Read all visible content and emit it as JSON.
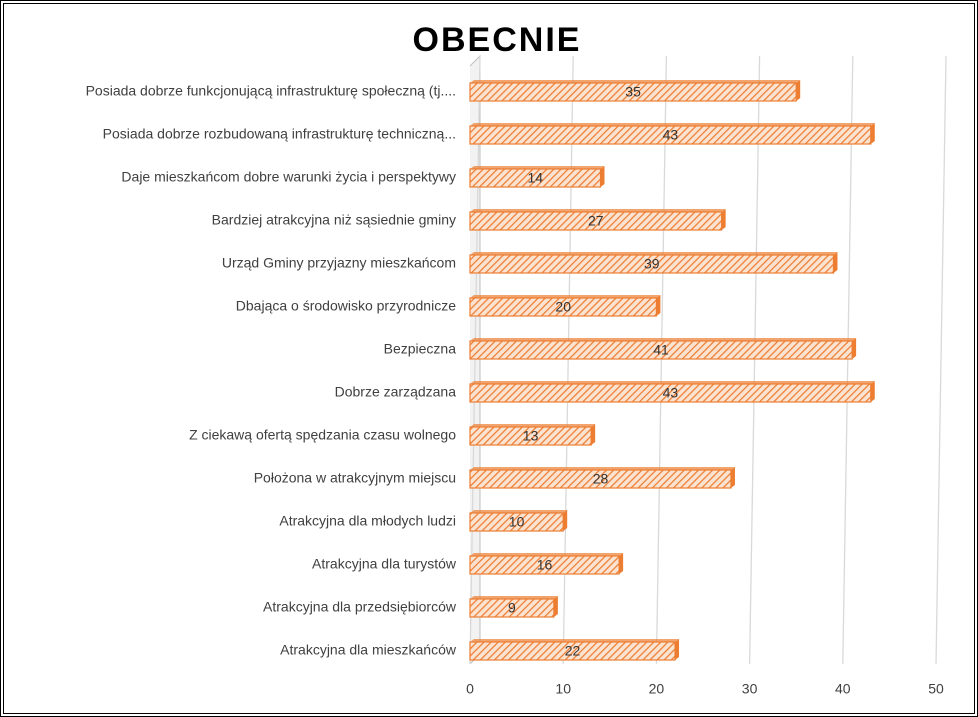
{
  "chart_data": {
    "type": "bar",
    "orientation": "horizontal",
    "title": "OBECNIE",
    "categories": [
      "Posiada dobrze funkcjonującą infrastrukturę społeczną (tj....",
      "Posiada dobrze rozbudowaną infrastrukturę techniczną...",
      "Daje mieszkańcom dobre warunki życia i perspektywy",
      "Bardziej atrakcyjna niż sąsiednie gminy",
      "Urząd Gminy przyjazny mieszkańcom",
      "Dbająca o środowisko przyrodnicze",
      "Bezpieczna",
      "Dobrze zarządzana",
      "Z ciekawą ofertą spędzania czasu wolnego",
      "Położona w atrakcyjnym miejscu",
      "Atrakcyjna dla młodych ludzi",
      "Atrakcyjna dla turystów",
      "Atrakcyjna dla przedsiębiorców",
      "Atrakcyjna dla mieszkańców"
    ],
    "values": [
      35,
      43,
      14,
      27,
      39,
      20,
      41,
      43,
      13,
      28,
      10,
      16,
      9,
      22
    ],
    "color": "#ed7d31",
    "xlim": [
      0,
      50
    ],
    "xticks": [
      0,
      10,
      20,
      30,
      40,
      50
    ],
    "grid": true
  }
}
